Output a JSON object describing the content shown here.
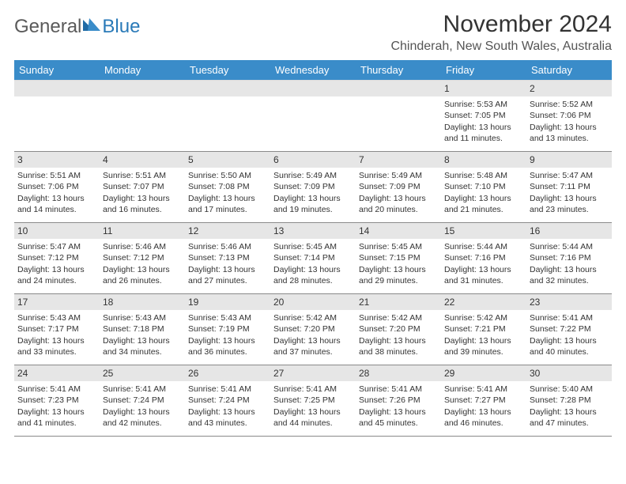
{
  "logo": {
    "word1": "General",
    "word2": "Blue",
    "tri_color": "#1f6aa5"
  },
  "title": "November 2024",
  "location": "Chinderah, New South Wales, Australia",
  "colors": {
    "header_bg": "#3a8cc9",
    "header_fg": "#ffffff",
    "daybar_bg": "#e6e6e6",
    "cell_border": "#8a8a8a"
  },
  "daynames": [
    "Sunday",
    "Monday",
    "Tuesday",
    "Wednesday",
    "Thursday",
    "Friday",
    "Saturday"
  ],
  "weeks": [
    [
      null,
      null,
      null,
      null,
      null,
      {
        "n": "1",
        "sr": "5:53 AM",
        "ss": "7:05 PM",
        "dl": "13 hours and 11 minutes."
      },
      {
        "n": "2",
        "sr": "5:52 AM",
        "ss": "7:06 PM",
        "dl": "13 hours and 13 minutes."
      }
    ],
    [
      {
        "n": "3",
        "sr": "5:51 AM",
        "ss": "7:06 PM",
        "dl": "13 hours and 14 minutes."
      },
      {
        "n": "4",
        "sr": "5:51 AM",
        "ss": "7:07 PM",
        "dl": "13 hours and 16 minutes."
      },
      {
        "n": "5",
        "sr": "5:50 AM",
        "ss": "7:08 PM",
        "dl": "13 hours and 17 minutes."
      },
      {
        "n": "6",
        "sr": "5:49 AM",
        "ss": "7:09 PM",
        "dl": "13 hours and 19 minutes."
      },
      {
        "n": "7",
        "sr": "5:49 AM",
        "ss": "7:09 PM",
        "dl": "13 hours and 20 minutes."
      },
      {
        "n": "8",
        "sr": "5:48 AM",
        "ss": "7:10 PM",
        "dl": "13 hours and 21 minutes."
      },
      {
        "n": "9",
        "sr": "5:47 AM",
        "ss": "7:11 PM",
        "dl": "13 hours and 23 minutes."
      }
    ],
    [
      {
        "n": "10",
        "sr": "5:47 AM",
        "ss": "7:12 PM",
        "dl": "13 hours and 24 minutes."
      },
      {
        "n": "11",
        "sr": "5:46 AM",
        "ss": "7:12 PM",
        "dl": "13 hours and 26 minutes."
      },
      {
        "n": "12",
        "sr": "5:46 AM",
        "ss": "7:13 PM",
        "dl": "13 hours and 27 minutes."
      },
      {
        "n": "13",
        "sr": "5:45 AM",
        "ss": "7:14 PM",
        "dl": "13 hours and 28 minutes."
      },
      {
        "n": "14",
        "sr": "5:45 AM",
        "ss": "7:15 PM",
        "dl": "13 hours and 29 minutes."
      },
      {
        "n": "15",
        "sr": "5:44 AM",
        "ss": "7:16 PM",
        "dl": "13 hours and 31 minutes."
      },
      {
        "n": "16",
        "sr": "5:44 AM",
        "ss": "7:16 PM",
        "dl": "13 hours and 32 minutes."
      }
    ],
    [
      {
        "n": "17",
        "sr": "5:43 AM",
        "ss": "7:17 PM",
        "dl": "13 hours and 33 minutes."
      },
      {
        "n": "18",
        "sr": "5:43 AM",
        "ss": "7:18 PM",
        "dl": "13 hours and 34 minutes."
      },
      {
        "n": "19",
        "sr": "5:43 AM",
        "ss": "7:19 PM",
        "dl": "13 hours and 36 minutes."
      },
      {
        "n": "20",
        "sr": "5:42 AM",
        "ss": "7:20 PM",
        "dl": "13 hours and 37 minutes."
      },
      {
        "n": "21",
        "sr": "5:42 AM",
        "ss": "7:20 PM",
        "dl": "13 hours and 38 minutes."
      },
      {
        "n": "22",
        "sr": "5:42 AM",
        "ss": "7:21 PM",
        "dl": "13 hours and 39 minutes."
      },
      {
        "n": "23",
        "sr": "5:41 AM",
        "ss": "7:22 PM",
        "dl": "13 hours and 40 minutes."
      }
    ],
    [
      {
        "n": "24",
        "sr": "5:41 AM",
        "ss": "7:23 PM",
        "dl": "13 hours and 41 minutes."
      },
      {
        "n": "25",
        "sr": "5:41 AM",
        "ss": "7:24 PM",
        "dl": "13 hours and 42 minutes."
      },
      {
        "n": "26",
        "sr": "5:41 AM",
        "ss": "7:24 PM",
        "dl": "13 hours and 43 minutes."
      },
      {
        "n": "27",
        "sr": "5:41 AM",
        "ss": "7:25 PM",
        "dl": "13 hours and 44 minutes."
      },
      {
        "n": "28",
        "sr": "5:41 AM",
        "ss": "7:26 PM",
        "dl": "13 hours and 45 minutes."
      },
      {
        "n": "29",
        "sr": "5:41 AM",
        "ss": "7:27 PM",
        "dl": "13 hours and 46 minutes."
      },
      {
        "n": "30",
        "sr": "5:40 AM",
        "ss": "7:28 PM",
        "dl": "13 hours and 47 minutes."
      }
    ]
  ],
  "labels": {
    "sunrise": "Sunrise: ",
    "sunset": "Sunset: ",
    "daylight": "Daylight: "
  }
}
